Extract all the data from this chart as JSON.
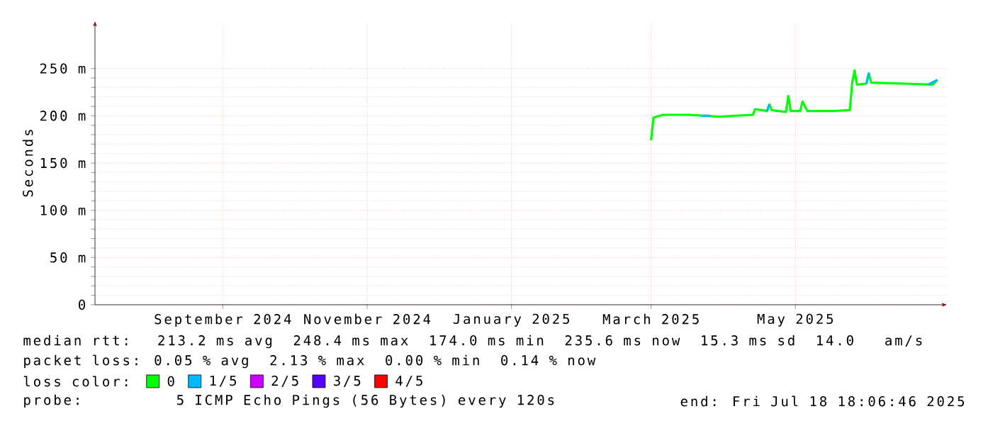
{
  "chart_data": {
    "type": "line",
    "ylabel": "Seconds",
    "legend_title": "loss color:",
    "legend": "bottom",
    "grid": true,
    "xlim": [
      "2024-07-23",
      "2025-07-18"
    ],
    "xticks": [
      {
        "value": "2024-09-15",
        "label": "September 2024"
      },
      {
        "value": "2024-11-15",
        "label": "November 2024"
      },
      {
        "value": "2025-01-15",
        "label": "January 2025"
      },
      {
        "value": "2025-03-15",
        "label": "March 2025"
      },
      {
        "value": "2025-05-15",
        "label": "May 2025"
      }
    ],
    "ylim": [
      0,
      300
    ],
    "yticks": [
      0,
      {
        "value": 50,
        "label": "50 m"
      },
      {
        "value": 100,
        "label": "100 m"
      },
      {
        "value": 150,
        "label": "150 m"
      },
      {
        "value": 200,
        "label": "200 m"
      },
      {
        "value": 250,
        "label": "250 m"
      }
    ],
    "series": [
      {
        "name": "0",
        "color": "#00ff00",
        "x": [
          "2025-03-15",
          "2025-03-16",
          "2025-03-20",
          "2025-03-31",
          "2025-04-07",
          "2025-04-13",
          "2025-04-19",
          "2025-04-27",
          "2025-04-28",
          "2025-05-03",
          "2025-05-04",
          "2025-05-05",
          "2025-05-11",
          "2025-05-12",
          "2025-05-13",
          "2025-05-17",
          "2025-05-18",
          "2025-05-20",
          "2025-05-31",
          "2025-06-07",
          "2025-06-08",
          "2025-06-09",
          "2025-06-10",
          "2025-06-14",
          "2025-06-15",
          "2025-06-16",
          "2025-06-30",
          "2025-07-12",
          "2025-07-14"
        ],
        "values": [
          174,
          198,
          201,
          201,
          200,
          199,
          200,
          201,
          207,
          205,
          212,
          206,
          204,
          221,
          205,
          205,
          215,
          205,
          205,
          206,
          235,
          248,
          233,
          234,
          245,
          235,
          234,
          233,
          238
        ]
      },
      {
        "name": "1/5",
        "color": "#00b8ff",
        "x": [
          "2025-04-05",
          "2025-04-09",
          "2025-04-10",
          "2025-05-03",
          "2025-05-04",
          "2025-05-05",
          "2025-06-14",
          "2025-06-15",
          "2025-06-16",
          "2025-07-10",
          "2025-07-14"
        ],
        "values": [
          200,
          200,
          null,
          205,
          212,
          null,
          234,
          245,
          null,
          233,
          238
        ]
      },
      {
        "name": "2/5",
        "color": "#cc00ff"
      },
      {
        "name": "3/5",
        "color": "#5500ff"
      },
      {
        "name": "4/5",
        "color": "#ff0000"
      }
    ],
    "annotations": [
      "median rtt:  213.2 ms avg  248.4 ms max  174.0 ms min  235.6 ms now  15.3 ms sd  14.0   am/s",
      "packet loss: 0.05 % avg  2.13 % max  0.00 % min  0.14 % now",
      "probe:       5 ICMP Echo Pings (56 Bytes) every 120s",
      "end: Fri Jul 18 18:06:46 2025"
    ]
  }
}
